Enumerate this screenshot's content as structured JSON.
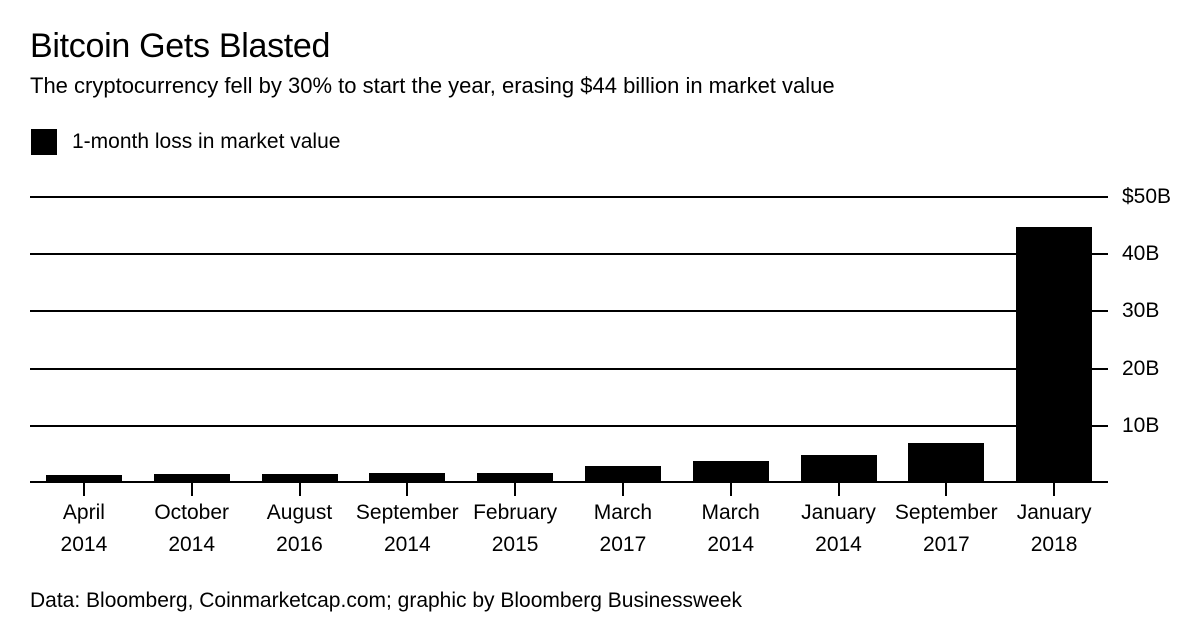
{
  "header": {
    "title": "Bitcoin Gets Blasted",
    "subtitle": "The cryptocurrency fell by 30% to start the year, erasing $44 billion in market value"
  },
  "legend": {
    "label": "1-month loss in market value",
    "swatch_color": "#000000"
  },
  "chart_data": {
    "type": "bar",
    "title": "Bitcoin Gets Blasted",
    "subtitle": "The cryptocurrency fell by 30% to start the year, erasing $44 billion in market value",
    "unit": "billions of US dollars",
    "categories": [
      {
        "month": "April",
        "year": "2014"
      },
      {
        "month": "October",
        "year": "2014"
      },
      {
        "month": "August",
        "year": "2016"
      },
      {
        "month": "September",
        "year": "2014"
      },
      {
        "month": "February",
        "year": "2015"
      },
      {
        "month": "March",
        "year": "2017"
      },
      {
        "month": "March",
        "year": "2014"
      },
      {
        "month": "January",
        "year": "2014"
      },
      {
        "month": "September",
        "year": "2017"
      },
      {
        "month": "January",
        "year": "2018"
      }
    ],
    "values": [
      1.1,
      1.2,
      1.2,
      1.4,
      1.4,
      2.6,
      3.5,
      4.6,
      6.7,
      44.4
    ],
    "series_name": "1-month loss in market value",
    "bar_color": "#000000",
    "grid": true,
    "ylim": [
      0,
      50
    ],
    "y_ticks": [
      {
        "value": 50,
        "label": "$50B"
      },
      {
        "value": 40,
        "label": "40B"
      },
      {
        "value": 30,
        "label": "30B"
      },
      {
        "value": 20,
        "label": "20B"
      },
      {
        "value": 10,
        "label": "10B"
      }
    ],
    "y_axis_side": "right",
    "legend_position": "top-left"
  },
  "footer": {
    "source": "Data: Bloomberg, Coinmarketcap.com; graphic by Bloomberg Businessweek"
  }
}
